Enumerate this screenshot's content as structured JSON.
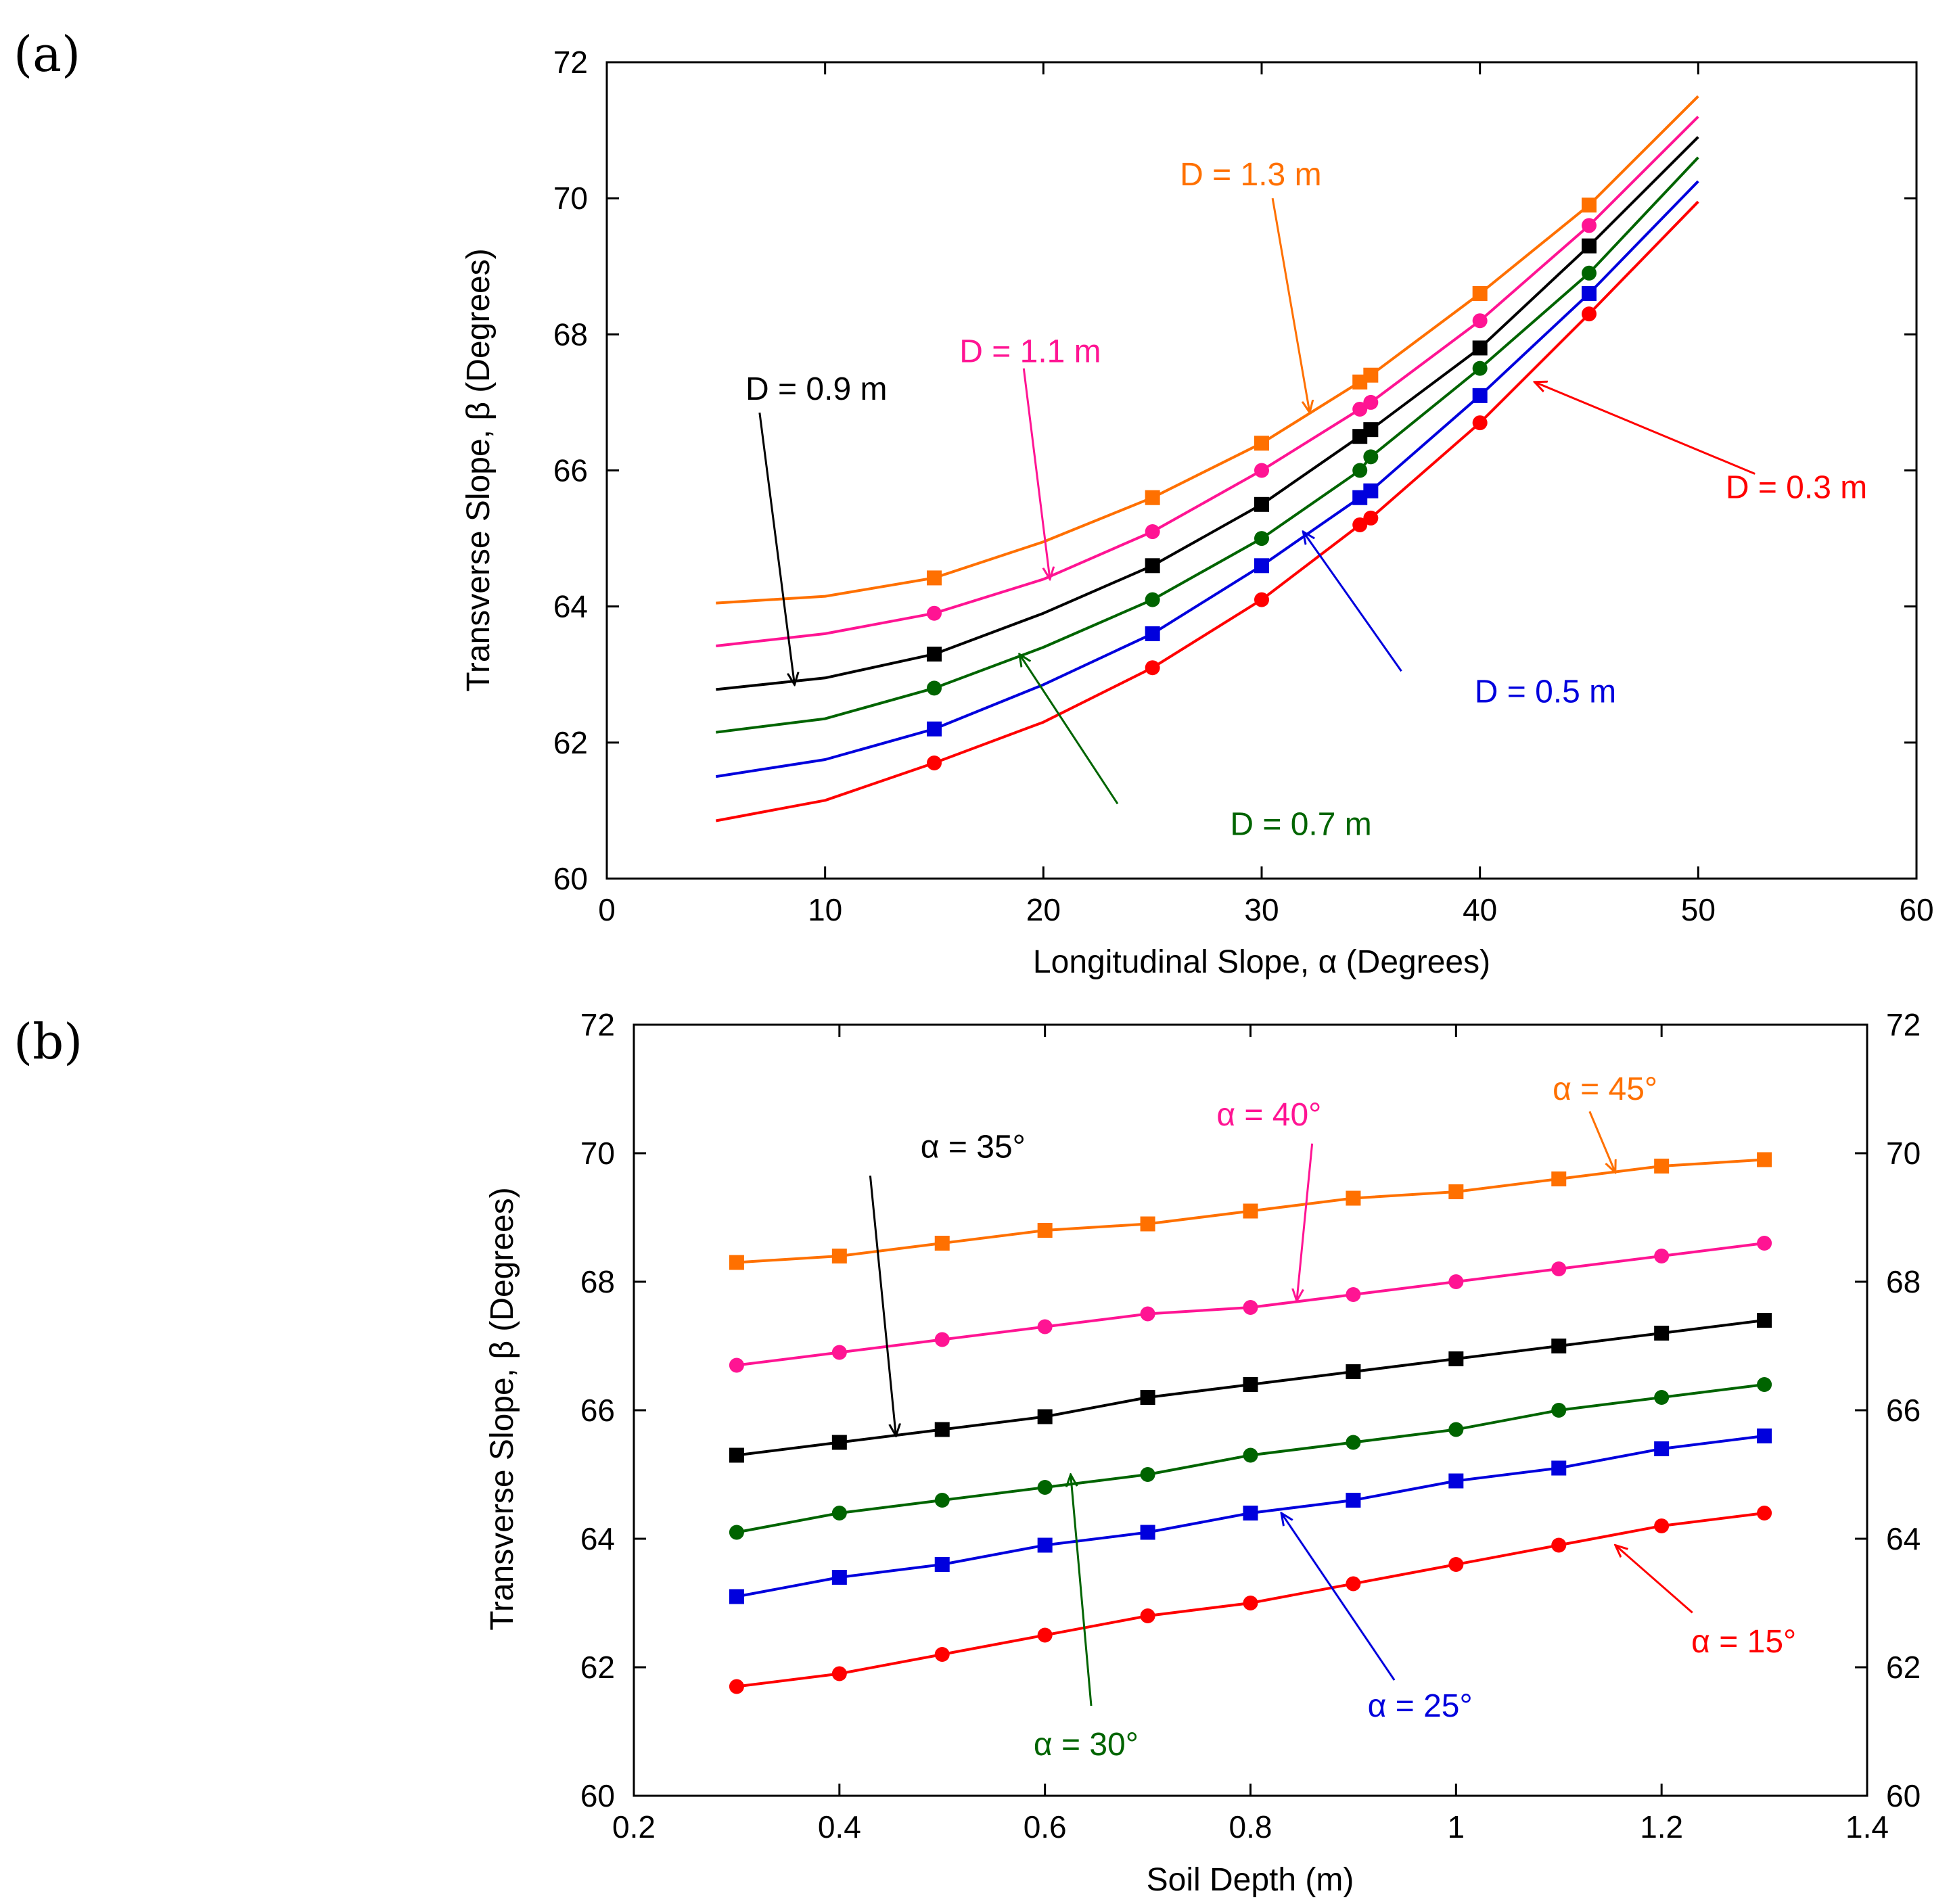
{
  "chart_data": [
    {
      "type": "line",
      "panel_label": "(a)",
      "xlabel": "Longitudinal Slope, α (Degrees)",
      "ylabel": "Transverse Slope, β (Degrees)",
      "xlim": [
        0,
        60
      ],
      "ylim": [
        60,
        72
      ],
      "xticks": [
        "0",
        "10",
        "20",
        "30",
        "40",
        "50",
        "60"
      ],
      "yticks": [
        "60",
        "62",
        "64",
        "66",
        "68",
        "70",
        "72"
      ],
      "grid": false,
      "series": [
        {
          "name": "D = 0.3 m",
          "color": "#ff0000",
          "marker": "circle",
          "x": [
            5,
            10,
            15,
            20,
            25,
            30,
            34.5,
            35,
            40,
            45,
            50
          ],
          "y": [
            60.85,
            61.15,
            61.7,
            62.3,
            63.1,
            64.1,
            65.2,
            65.3,
            66.7,
            68.3,
            69.95
          ],
          "marker_x": [
            15,
            25,
            30,
            34.5,
            35,
            40,
            45
          ],
          "marker_y": [
            61.7,
            63.1,
            64.1,
            65.2,
            65.3,
            66.7,
            68.3
          ]
        },
        {
          "name": "D = 0.5 m",
          "color": "#0000dd",
          "marker": "square",
          "x": [
            5,
            10,
            15,
            20,
            25,
            30,
            34.5,
            35,
            40,
            45,
            50
          ],
          "y": [
            61.5,
            61.75,
            62.2,
            62.85,
            63.6,
            64.6,
            65.6,
            65.7,
            67.1,
            68.6,
            70.25
          ],
          "marker_x": [
            15,
            25,
            30,
            34.5,
            35,
            40,
            45
          ],
          "marker_y": [
            62.2,
            63.6,
            64.6,
            65.6,
            65.7,
            67.1,
            68.6
          ]
        },
        {
          "name": "D = 0.7 m",
          "color": "#006400",
          "marker": "circle",
          "x": [
            5,
            10,
            15,
            20,
            25,
            30,
            34.5,
            35,
            40,
            45,
            50
          ],
          "y": [
            62.15,
            62.35,
            62.8,
            63.4,
            64.1,
            65.0,
            66.0,
            66.2,
            67.5,
            68.9,
            70.6
          ],
          "marker_x": [
            15,
            25,
            30,
            34.5,
            35,
            40,
            45
          ],
          "marker_y": [
            62.8,
            64.1,
            65.0,
            66.0,
            66.2,
            67.5,
            68.9
          ]
        },
        {
          "name": "D = 0.9 m",
          "color": "#000000",
          "marker": "square",
          "x": [
            5,
            10,
            15,
            20,
            25,
            30,
            34.5,
            35,
            40,
            45,
            50
          ],
          "y": [
            62.78,
            62.95,
            63.3,
            63.9,
            64.6,
            65.5,
            66.5,
            66.6,
            67.8,
            69.3,
            70.9
          ],
          "marker_x": [
            15,
            25,
            30,
            34.5,
            35,
            40,
            45
          ],
          "marker_y": [
            63.3,
            64.6,
            65.5,
            66.5,
            66.6,
            67.8,
            69.3
          ]
        },
        {
          "name": "D = 1.1 m",
          "color": "#ff1493",
          "marker": "circle",
          "x": [
            5,
            10,
            15,
            20,
            25,
            30,
            34.5,
            35,
            40,
            45,
            50
          ],
          "y": [
            63.42,
            63.6,
            63.9,
            64.4,
            65.1,
            66.0,
            66.9,
            67.0,
            68.2,
            69.6,
            71.2
          ],
          "marker_x": [
            15,
            25,
            30,
            34.5,
            35,
            40,
            45
          ],
          "marker_y": [
            63.9,
            65.1,
            66.0,
            66.9,
            67.0,
            68.2,
            69.6
          ]
        },
        {
          "name": "D = 1.3 m",
          "color": "#ff7000",
          "marker": "square",
          "x": [
            5,
            10,
            15,
            20,
            25,
            30,
            34.5,
            35,
            40,
            45,
            50
          ],
          "y": [
            64.05,
            64.15,
            64.42,
            64.95,
            65.6,
            66.4,
            67.3,
            67.4,
            68.6,
            69.9,
            71.5
          ],
          "marker_x": [
            15,
            25,
            30,
            34.5,
            35,
            40,
            45
          ],
          "marker_y": [
            64.42,
            65.6,
            66.4,
            67.3,
            67.4,
            68.6,
            69.9
          ]
        }
      ],
      "annotations": [
        {
          "text": "D = 0.9 m",
          "color": "#000000",
          "text_x": 9.6,
          "text_y": 67.2,
          "arrow_from": [
            7.0,
            66.85
          ],
          "arrow_to": [
            8.6,
            62.85
          ]
        },
        {
          "text": "D = 1.1 m",
          "color": "#ff1493",
          "text_x": 19.4,
          "text_y": 67.75,
          "arrow_from": [
            19.1,
            67.5
          ],
          "arrow_to": [
            20.3,
            64.4
          ]
        },
        {
          "text": "D = 1.3 m",
          "color": "#ff7000",
          "text_x": 29.5,
          "text_y": 70.35,
          "arrow_from": [
            30.5,
            70.0
          ],
          "arrow_to": [
            32.2,
            66.85
          ]
        },
        {
          "text": "D = 0.3 m",
          "color": "#ff0000",
          "text_x": 54.5,
          "text_y": 65.75,
          "arrow_from": [
            52.6,
            65.95
          ],
          "arrow_to": [
            42.5,
            67.3
          ]
        },
        {
          "text": "D = 0.5 m",
          "color": "#0000dd",
          "text_x": 43.0,
          "text_y": 62.75,
          "arrow_from": [
            36.4,
            63.05
          ],
          "arrow_to": [
            31.9,
            65.1
          ]
        },
        {
          "text": "D = 0.7 m",
          "color": "#006400",
          "text_x": 31.8,
          "text_y": 60.8,
          "arrow_from": [
            23.4,
            61.1
          ],
          "arrow_to": [
            18.9,
            63.3
          ]
        }
      ]
    },
    {
      "type": "line",
      "panel_label": "(b)",
      "xlabel": "Soil Depth (m)",
      "ylabel": "Transverse Slope, β (Degrees)",
      "xlim": [
        0.2,
        1.4
      ],
      "ylim": [
        60,
        72
      ],
      "xticks": [
        "0.2",
        "0.4",
        "0.6",
        "0.8",
        "1",
        "1.2",
        "1.4"
      ],
      "yticks": [
        "60",
        "62",
        "64",
        "66",
        "68",
        "70",
        "72"
      ],
      "right_yticks": [
        "60",
        "62",
        "64",
        "66",
        "68",
        "70",
        "72"
      ],
      "grid": false,
      "series": [
        {
          "name": "α = 15°",
          "color": "#ff0000",
          "marker": "circle",
          "x": [
            0.3,
            0.4,
            0.5,
            0.6,
            0.7,
            0.8,
            0.9,
            1.0,
            1.1,
            1.2,
            1.3
          ],
          "y": [
            61.7,
            61.9,
            62.2,
            62.5,
            62.8,
            63.0,
            63.3,
            63.6,
            63.9,
            64.2,
            64.4
          ]
        },
        {
          "name": "α = 25°",
          "color": "#0000dd",
          "marker": "square",
          "x": [
            0.3,
            0.4,
            0.5,
            0.6,
            0.7,
            0.8,
            0.9,
            1.0,
            1.1,
            1.2,
            1.3
          ],
          "y": [
            63.1,
            63.4,
            63.6,
            63.9,
            64.1,
            64.4,
            64.6,
            64.9,
            65.1,
            65.4,
            65.6
          ]
        },
        {
          "name": "α = 30°",
          "color": "#006400",
          "marker": "circle",
          "x": [
            0.3,
            0.4,
            0.5,
            0.6,
            0.7,
            0.8,
            0.9,
            1.0,
            1.1,
            1.2,
            1.3
          ],
          "y": [
            64.1,
            64.4,
            64.6,
            64.8,
            65.0,
            65.3,
            65.5,
            65.7,
            66.0,
            66.2,
            66.4
          ]
        },
        {
          "name": "α = 35°",
          "color": "#000000",
          "marker": "square",
          "x": [
            0.3,
            0.4,
            0.5,
            0.6,
            0.7,
            0.8,
            0.9,
            1.0,
            1.1,
            1.2,
            1.3
          ],
          "y": [
            65.3,
            65.5,
            65.7,
            65.9,
            66.2,
            66.4,
            66.6,
            66.8,
            67.0,
            67.2,
            67.4
          ]
        },
        {
          "name": "α = 40°",
          "color": "#ff1493",
          "marker": "circle",
          "x": [
            0.3,
            0.4,
            0.5,
            0.6,
            0.7,
            0.8,
            0.9,
            1.0,
            1.1,
            1.2,
            1.3
          ],
          "y": [
            66.7,
            66.9,
            67.1,
            67.3,
            67.5,
            67.6,
            67.8,
            68.0,
            68.2,
            68.4,
            68.6
          ]
        },
        {
          "name": "α = 45°",
          "color": "#ff7000",
          "marker": "square",
          "x": [
            0.3,
            0.4,
            0.5,
            0.6,
            0.7,
            0.8,
            0.9,
            1.0,
            1.1,
            1.2,
            1.3
          ],
          "y": [
            68.3,
            68.4,
            68.6,
            68.8,
            68.9,
            69.1,
            69.3,
            69.4,
            69.6,
            69.8,
            69.9
          ]
        }
      ],
      "annotations": [
        {
          "text": "α = 35°",
          "color": "#000000",
          "text_x": 0.53,
          "text_y": 70.1,
          "arrow_from": [
            0.43,
            69.65
          ],
          "arrow_to": [
            0.455,
            65.6
          ]
        },
        {
          "text": "α = 40°",
          "color": "#ff1493",
          "text_x": 0.818,
          "text_y": 70.6,
          "arrow_from": [
            0.86,
            70.15
          ],
          "arrow_to": [
            0.845,
            67.7
          ]
        },
        {
          "text": "α = 45°",
          "color": "#ff7000",
          "text_x": 1.145,
          "text_y": 71.0,
          "arrow_from": [
            1.13,
            70.65
          ],
          "arrow_to": [
            1.155,
            69.7
          ]
        },
        {
          "text": "α = 30°",
          "color": "#006400",
          "text_x": 0.64,
          "text_y": 60.8,
          "arrow_from": [
            0.645,
            61.4
          ],
          "arrow_to": [
            0.625,
            65.0
          ]
        },
        {
          "text": "α = 25°",
          "color": "#0000dd",
          "text_x": 0.965,
          "text_y": 61.4,
          "arrow_from": [
            0.94,
            61.8
          ],
          "arrow_to": [
            0.83,
            64.4
          ]
        },
        {
          "text": "α = 15°",
          "color": "#ff0000",
          "text_x": 1.28,
          "text_y": 62.4,
          "arrow_from": [
            1.23,
            62.85
          ],
          "arrow_to": [
            1.155,
            63.9
          ]
        }
      ]
    }
  ]
}
